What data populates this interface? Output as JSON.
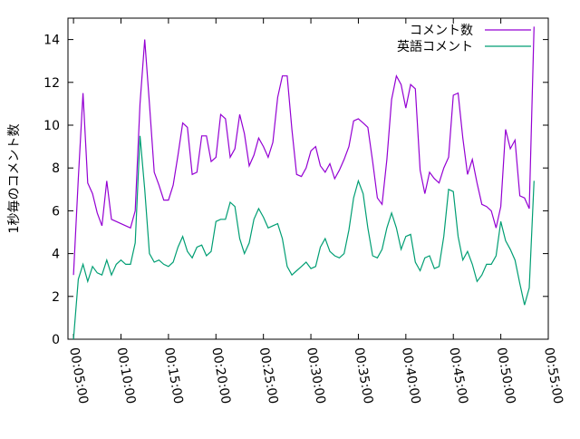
{
  "chart_data": {
    "type": "line",
    "title": "",
    "xlabel": "",
    "ylabel": "1秒毎のコメント数",
    "xlim": [
      265,
      3300
    ],
    "ylim": [
      0,
      15
    ],
    "x_ticks": [
      "00:05:00",
      "00:10:00",
      "00:15:00",
      "00:20:00",
      "00:25:00",
      "00:30:00",
      "00:35:00",
      "00:40:00",
      "00:45:00",
      "00:50:00",
      "00:55:00"
    ],
    "x_tick_values": [
      300,
      600,
      900,
      1200,
      1500,
      1800,
      2100,
      2400,
      2700,
      3000,
      3300
    ],
    "y_ticks": [
      0,
      2,
      4,
      6,
      8,
      10,
      12,
      14
    ],
    "grid": false,
    "legend_position": "top-right",
    "series": [
      {
        "name": "コメント数",
        "color": "#9400d3",
        "x": [
          300,
          330,
          360,
          390,
          420,
          450,
          480,
          510,
          540,
          570,
          600,
          630,
          660,
          690,
          720,
          750,
          780,
          810,
          840,
          870,
          900,
          930,
          960,
          990,
          1020,
          1050,
          1080,
          1110,
          1140,
          1170,
          1200,
          1230,
          1260,
          1290,
          1320,
          1350,
          1380,
          1410,
          1440,
          1470,
          1500,
          1530,
          1560,
          1590,
          1620,
          1650,
          1680,
          1710,
          1740,
          1770,
          1800,
          1830,
          1860,
          1890,
          1920,
          1950,
          1980,
          2010,
          2040,
          2070,
          2100,
          2130,
          2160,
          2190,
          2220,
          2250,
          2280,
          2310,
          2340,
          2370,
          2400,
          2430,
          2460,
          2490,
          2520,
          2550,
          2580,
          2610,
          2640,
          2670,
          2700,
          2730,
          2760,
          2790,
          2820,
          2850,
          2880,
          2910,
          2940,
          2970,
          3000,
          3030,
          3060,
          3090,
          3120,
          3150,
          3180,
          3210
        ],
        "y": [
          3.0,
          7.5,
          11.5,
          7.3,
          6.8,
          5.9,
          5.3,
          7.4,
          5.6,
          5.5,
          5.4,
          5.3,
          5.2,
          6.0,
          11.0,
          14.0,
          11.0,
          7.8,
          7.2,
          6.5,
          6.5,
          7.2,
          8.6,
          10.1,
          9.9,
          7.7,
          7.8,
          9.5,
          9.5,
          8.3,
          8.5,
          10.5,
          10.3,
          8.5,
          8.9,
          10.5,
          9.6,
          8.1,
          8.6,
          9.4,
          9.0,
          8.5,
          9.2,
          11.3,
          12.3,
          12.3,
          9.8,
          7.7,
          7.6,
          8.0,
          8.8,
          9.0,
          8.1,
          7.8,
          8.2,
          7.5,
          7.9,
          8.4,
          9.0,
          10.2,
          10.3,
          10.1,
          9.9,
          8.3,
          6.6,
          6.3,
          8.4,
          11.2,
          12.3,
          11.9,
          10.8,
          11.9,
          11.7,
          7.9,
          6.8,
          7.8,
          7.5,
          7.3,
          8.0,
          8.5,
          11.4,
          11.5,
          9.4,
          7.7,
          8.4,
          7.3,
          6.3,
          6.2,
          6.0,
          5.2,
          6.2,
          9.8,
          8.9,
          9.3,
          6.7,
          6.6,
          6.1,
          14.6
        ]
      },
      {
        "name": "英語コメント",
        "color": "#009e73",
        "x": [
          300,
          330,
          360,
          390,
          420,
          450,
          480,
          510,
          540,
          570,
          600,
          630,
          660,
          690,
          720,
          750,
          780,
          810,
          840,
          870,
          900,
          930,
          960,
          990,
          1020,
          1050,
          1080,
          1110,
          1140,
          1170,
          1200,
          1230,
          1260,
          1290,
          1320,
          1350,
          1380,
          1410,
          1440,
          1470,
          1500,
          1530,
          1560,
          1590,
          1620,
          1650,
          1680,
          1710,
          1740,
          1770,
          1800,
          1830,
          1860,
          1890,
          1920,
          1950,
          1980,
          2010,
          2040,
          2070,
          2100,
          2130,
          2160,
          2190,
          2220,
          2250,
          2280,
          2310,
          2340,
          2370,
          2400,
          2430,
          2460,
          2490,
          2520,
          2550,
          2580,
          2610,
          2640,
          2670,
          2700,
          2730,
          2760,
          2790,
          2820,
          2850,
          2880,
          2910,
          2940,
          2970,
          3000,
          3030,
          3060,
          3090,
          3120,
          3150,
          3180,
          3210
        ],
        "y": [
          0.0,
          2.8,
          3.5,
          2.7,
          3.4,
          3.1,
          3.0,
          3.7,
          3.0,
          3.5,
          3.7,
          3.5,
          3.5,
          4.5,
          9.5,
          7.0,
          4.0,
          3.6,
          3.7,
          3.5,
          3.4,
          3.6,
          4.3,
          4.8,
          4.1,
          3.8,
          4.3,
          4.4,
          3.9,
          4.1,
          5.5,
          5.6,
          5.6,
          6.4,
          6.2,
          4.7,
          4.0,
          4.5,
          5.6,
          6.1,
          5.7,
          5.2,
          5.3,
          5.4,
          4.7,
          3.4,
          3.0,
          3.2,
          3.4,
          3.6,
          3.3,
          3.4,
          4.3,
          4.7,
          4.1,
          3.9,
          3.8,
          4.0,
          5.1,
          6.6,
          7.4,
          6.8,
          5.2,
          3.9,
          3.8,
          4.2,
          5.2,
          5.9,
          5.2,
          4.2,
          4.8,
          4.9,
          3.6,
          3.2,
          3.8,
          3.9,
          3.3,
          3.4,
          4.8,
          7.0,
          6.9,
          4.8,
          3.7,
          4.1,
          3.5,
          2.7,
          3.0,
          3.5,
          3.5,
          3.9,
          5.5,
          4.6,
          4.2,
          3.7,
          2.6,
          1.6,
          2.4,
          7.4
        ]
      }
    ]
  }
}
